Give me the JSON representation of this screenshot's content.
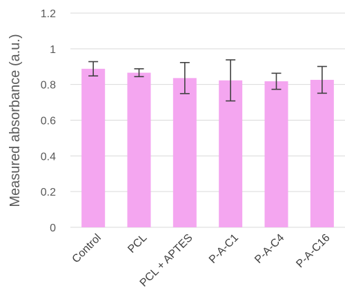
{
  "chart_data": {
    "type": "bar",
    "categories": [
      "Control",
      "PCL",
      "PCL + APTES",
      "P-A-C1",
      "P-A-C4",
      "P-A-C16"
    ],
    "values": [
      0.888,
      0.866,
      0.836,
      0.823,
      0.818,
      0.826
    ],
    "error": [
      0.04,
      0.022,
      0.087,
      0.115,
      0.045,
      0.075
    ],
    "title": "",
    "xlabel": "",
    "ylabel": "Measured absorbance (a.u.)",
    "ylim": [
      0,
      1.2
    ],
    "yticks": [
      "0",
      "0.2",
      "0.4",
      "0.6",
      "0.8",
      "1",
      "1.2"
    ],
    "grid": true,
    "bar_color": "#f4a6f0",
    "error_color": "#404040",
    "grid_color": "#d9d9d9"
  }
}
